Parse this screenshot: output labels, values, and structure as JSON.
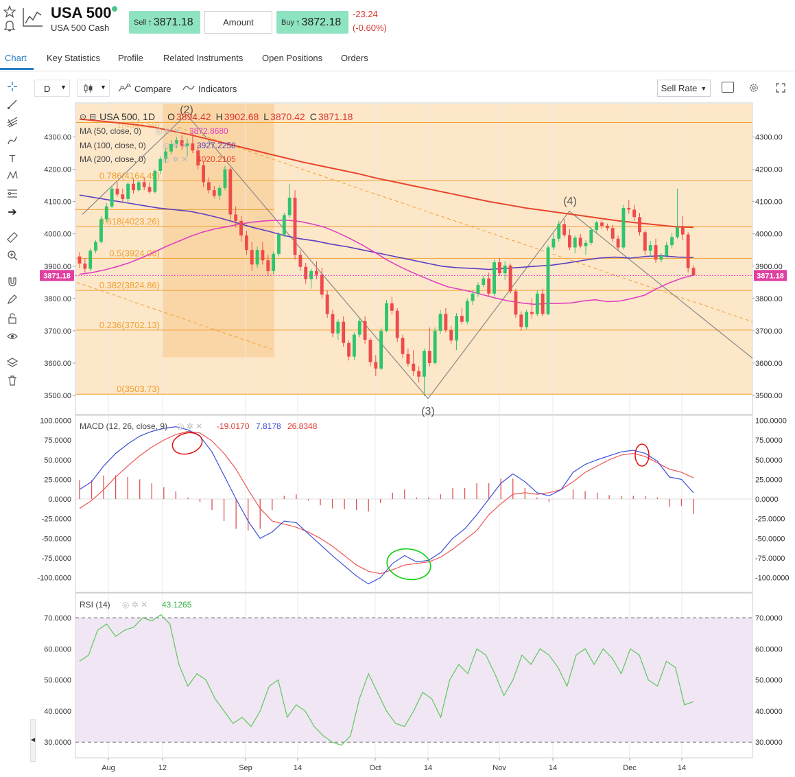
{
  "header": {
    "title": "USA 500",
    "subtitle": "USA 500 Cash",
    "sell_label": "Sell",
    "sell_price": "3871.18",
    "amount_label": "Amount",
    "buy_label": "Buy",
    "buy_price": "3872.18",
    "change": "-23.24",
    "change_pct": "(-0.60%)",
    "up_arrow": "↑",
    "colors": {
      "rate_bg": "#8ee3c0",
      "negative": "#d9382f",
      "online": "#4cc58a"
    }
  },
  "tabs": [
    {
      "label": "Chart",
      "active": true
    },
    {
      "label": "Key Statistics"
    },
    {
      "label": "Profile"
    },
    {
      "label": "Related Instruments"
    },
    {
      "label": "Open Positions"
    },
    {
      "label": "Orders"
    }
  ],
  "toolbar": {
    "interval": "D",
    "compare": "Compare",
    "indicators": "Indicators",
    "price_type": "Sell Rate"
  },
  "main_panel": {
    "legend": {
      "symbol": "USA 500, 1D",
      "o_label": "O",
      "o_value": "3894.42",
      "h_label": "H",
      "h_value": "3902.68",
      "l_label": "L",
      "l_value": "3870.42",
      "c_label": "C",
      "c_value": "3871.18"
    },
    "ma_rows": [
      {
        "label": "MA (50, close, 0)",
        "value": "3872.8680",
        "color": "#e040c0"
      },
      {
        "label": "MA (100, close, 0)",
        "value": "3927.2258",
        "color": "#5b3fbf"
      },
      {
        "label": "MA (200, close, 0)",
        "value": "4020.2105",
        "color": "#e5462c"
      }
    ],
    "fib_levels": [
      {
        "label": "0.786(4164.49)",
        "price": 4164.49
      },
      {
        "label": "0.618(4023.26)",
        "price": 4023.26
      },
      {
        "label": "0.5(3924.06)",
        "price": 3924.06
      },
      {
        "label": "0.382(3824.86)",
        "price": 3824.86
      },
      {
        "label": "0.236(3702.13)",
        "price": 3702.13
      },
      {
        "label": "0(3503.73)",
        "price": 3503.73
      }
    ],
    "fib_top_label": "1(4344.59)",
    "wave_labels": [
      "(2)",
      "(3)",
      "(4)"
    ],
    "price_ticks": [
      "4300.00",
      "4200.00",
      "4100.00",
      "4000.00",
      "3900.00",
      "3800.00",
      "3700.00",
      "3600.00",
      "3500.00"
    ],
    "last_price": "3871.18"
  },
  "macd_panel": {
    "label": "MACD (12, 26, close, 9)",
    "hist_value": "-19.0170",
    "macd_value": "7.8178",
    "signal_value": "26.8348",
    "ticks": [
      "100.0000",
      "75.0000",
      "50.0000",
      "25.0000",
      "0.0000",
      "-25.0000",
      "-50.0000",
      "-75.0000",
      "-100.0000"
    ]
  },
  "rsi_panel": {
    "label": "RSI (14)",
    "value": "43.1265",
    "ticks": [
      "70.0000",
      "60.0000",
      "50.0000",
      "40.0000",
      "30.0000"
    ]
  },
  "x_axis_ticks": [
    "Aug",
    "12",
    "Sep",
    "14",
    "Oct",
    "14",
    "Nov",
    "14",
    "Dec",
    "14"
  ],
  "chart_data": {
    "type": "candlestick",
    "x_ticks": [
      "Aug",
      "12",
      "Sep",
      "14",
      "Oct",
      "14",
      "Nov",
      "14",
      "Dec",
      "14"
    ],
    "y_ticks": [
      4300,
      4200,
      4100,
      4000,
      3900,
      3800,
      3700,
      3600,
      3500
    ],
    "ylim": [
      3480,
      4380
    ],
    "last": {
      "open": 3894.42,
      "high": 3902.68,
      "low": 3870.42,
      "close": 3871.18
    },
    "candles": [
      [
        3930,
        3943,
        3895,
        3908
      ],
      [
        3908,
        3925,
        3880,
        3892
      ],
      [
        3892,
        3955,
        3885,
        3948
      ],
      [
        3948,
        3980,
        3940,
        3975
      ],
      [
        3975,
        4055,
        3970,
        4045
      ],
      [
        4045,
        4095,
        4035,
        4085
      ],
      [
        4085,
        4150,
        4080,
        4140
      ],
      [
        4140,
        4160,
        4115,
        4122
      ],
      [
        4122,
        4140,
        4100,
        4108
      ],
      [
        4108,
        4160,
        4100,
        4155
      ],
      [
        4155,
        4170,
        4125,
        4135
      ],
      [
        4135,
        4165,
        4130,
        4160
      ],
      [
        4160,
        4175,
        4135,
        4145
      ],
      [
        4145,
        4160,
        4125,
        4130
      ],
      [
        4130,
        4200,
        4125,
        4195
      ],
      [
        4195,
        4240,
        4185,
        4232
      ],
      [
        4232,
        4265,
        4220,
        4255
      ],
      [
        4255,
        4290,
        4245,
        4278
      ],
      [
        4278,
        4300,
        4265,
        4290
      ],
      [
        4290,
        4305,
        4260,
        4272
      ],
      [
        4272,
        4295,
        4240,
        4280
      ],
      [
        4280,
        4310,
        4250,
        4258
      ],
      [
        4258,
        4275,
        4200,
        4212
      ],
      [
        4212,
        4225,
        4145,
        4160
      ],
      [
        4160,
        4175,
        4125,
        4135
      ],
      [
        4135,
        4148,
        4110,
        4118
      ],
      [
        4118,
        4150,
        4105,
        4142
      ],
      [
        4142,
        4210,
        4135,
        4200
      ],
      [
        4200,
        4205,
        4045,
        4060
      ],
      [
        4060,
        4085,
        4020,
        4040
      ],
      [
        4040,
        4055,
        3975,
        3995
      ],
      [
        3995,
        4010,
        3935,
        3950
      ],
      [
        3950,
        3975,
        3885,
        3905
      ],
      [
        3905,
        3960,
        3895,
        3950
      ],
      [
        3950,
        3975,
        3905,
        3918
      ],
      [
        3918,
        3935,
        3870,
        3885
      ],
      [
        3885,
        3945,
        3875,
        3938
      ],
      [
        3938,
        4005,
        3930,
        3998
      ],
      [
        3998,
        4065,
        3990,
        4058
      ],
      [
        4058,
        4155,
        4050,
        4112
      ],
      [
        4112,
        4135,
        3920,
        3935
      ],
      [
        3935,
        3950,
        3885,
        3898
      ],
      [
        3898,
        3910,
        3845,
        3860
      ],
      [
        3860,
        3892,
        3830,
        3885
      ],
      [
        3885,
        3915,
        3860,
        3874
      ],
      [
        3874,
        3895,
        3800,
        3812
      ],
      [
        3812,
        3825,
        3740,
        3752
      ],
      [
        3752,
        3765,
        3680,
        3692
      ],
      [
        3692,
        3735,
        3672,
        3728
      ],
      [
        3728,
        3745,
        3650,
        3662
      ],
      [
        3662,
        3670,
        3608,
        3620
      ],
      [
        3620,
        3695,
        3610,
        3688
      ],
      [
        3688,
        3740,
        3680,
        3730
      ],
      [
        3730,
        3745,
        3660,
        3672
      ],
      [
        3672,
        3678,
        3590,
        3603
      ],
      [
        3603,
        3625,
        3560,
        3583
      ],
      [
        3583,
        3710,
        3578,
        3700
      ],
      [
        3700,
        3795,
        3695,
        3785
      ],
      [
        3785,
        3805,
        3750,
        3762
      ],
      [
        3762,
        3770,
        3665,
        3678
      ],
      [
        3678,
        3688,
        3615,
        3628
      ],
      [
        3628,
        3645,
        3590,
        3598
      ],
      [
        3598,
        3640,
        3560,
        3575
      ],
      [
        3575,
        3590,
        3540,
        3558
      ],
      [
        3558,
        3645,
        3498,
        3638
      ],
      [
        3638,
        3710,
        3590,
        3600
      ],
      [
        3600,
        3710,
        3595,
        3700
      ],
      [
        3700,
        3765,
        3690,
        3752
      ],
      [
        3752,
        3770,
        3695,
        3702
      ],
      [
        3702,
        3715,
        3660,
        3670
      ],
      [
        3670,
        3755,
        3640,
        3746
      ],
      [
        3746,
        3770,
        3720,
        3728
      ],
      [
        3728,
        3800,
        3720,
        3792
      ],
      [
        3792,
        3825,
        3780,
        3815
      ],
      [
        3815,
        3850,
        3805,
        3842
      ],
      [
        3842,
        3870,
        3835,
        3862
      ],
      [
        3862,
        3880,
        3808,
        3815
      ],
      [
        3815,
        3920,
        3808,
        3912
      ],
      [
        3912,
        3925,
        3870,
        3878
      ],
      [
        3878,
        3915,
        3858,
        3902
      ],
      [
        3902,
        3908,
        3815,
        3822
      ],
      [
        3822,
        3830,
        3740,
        3750
      ],
      [
        3750,
        3760,
        3700,
        3712
      ],
      [
        3712,
        3765,
        3705,
        3758
      ],
      [
        3758,
        3800,
        3738,
        3752
      ],
      [
        3752,
        3825,
        3745,
        3815
      ],
      [
        3815,
        3830,
        3745,
        3752
      ],
      [
        3752,
        3965,
        3748,
        3958
      ],
      [
        3958,
        4000,
        3950,
        3985
      ],
      [
        3985,
        4040,
        3975,
        4030
      ],
      [
        4030,
        4045,
        3990,
        3996
      ],
      [
        3996,
        4015,
        3950,
        3958
      ],
      [
        3958,
        3995,
        3940,
        3988
      ],
      [
        3988,
        4000,
        3955,
        3962
      ],
      [
        3962,
        3980,
        3935,
        3972
      ],
      [
        3972,
        4020,
        3965,
        4012
      ],
      [
        4012,
        4040,
        4000,
        4035
      ],
      [
        4035,
        4042,
        4015,
        4025
      ],
      [
        4025,
        4032,
        4010,
        4018
      ],
      [
        4018,
        4028,
        3975,
        3985
      ],
      [
        3985,
        3995,
        3948,
        3958
      ],
      [
        3958,
        4090,
        3952,
        4080
      ],
      [
        4080,
        4105,
        4062,
        4075
      ],
      [
        4075,
        4090,
        4040,
        4052
      ],
      [
        4052,
        4065,
        3995,
        4005
      ],
      [
        4005,
        4012,
        3935,
        3948
      ],
      [
        3948,
        3978,
        3930,
        3965
      ],
      [
        3965,
        3985,
        3910,
        3920
      ],
      [
        3920,
        3940,
        3912,
        3932
      ],
      [
        3932,
        3975,
        3925,
        3965
      ],
      [
        3965,
        4002,
        3955,
        3990
      ],
      [
        3990,
        4140,
        3985,
        4020
      ],
      [
        4020,
        4055,
        3980,
        3998
      ],
      [
        3998,
        4005,
        3880,
        3894
      ],
      [
        3894.42,
        3902.68,
        3870.42,
        3871.18
      ]
    ],
    "ma50": [
      3875,
      3880,
      3888,
      3898,
      3910,
      3925,
      3942,
      3960,
      3976,
      3992,
      4005,
      4015,
      4022,
      4030,
      4036,
      4040,
      4042,
      4042,
      4038,
      4030,
      4020,
      4004,
      3986,
      3966,
      3944,
      3920,
      3900,
      3882,
      3866,
      3850,
      3836,
      3828,
      3820,
      3810,
      3800,
      3792,
      3786,
      3782,
      3784,
      3785,
      3786,
      3792,
      3796,
      3790,
      3792,
      3800,
      3810,
      3830,
      3848,
      3862,
      3872
    ],
    "ma100": [
      4120,
      4112,
      4104,
      4096,
      4088,
      4080,
      4075,
      4070,
      4060,
      4048,
      4034,
      4020,
      4008,
      3995,
      3985,
      3978,
      3968,
      3960,
      3950,
      3940,
      3930,
      3920,
      3910,
      3900,
      3895,
      3893,
      3890,
      3893,
      3896,
      3900,
      3903,
      3910,
      3918,
      3925,
      3928,
      3925,
      3930,
      3932,
      3928,
      3927
    ],
    "ma200": [
      4355,
      4350,
      4344,
      4338,
      4330,
      4318,
      4306,
      4292,
      4278,
      4264,
      4250,
      4236,
      4222,
      4210,
      4198,
      4186,
      4172,
      4160,
      4148,
      4136,
      4124,
      4112,
      4100,
      4090,
      4080,
      4072,
      4064,
      4056,
      4048,
      4040,
      4034,
      4028,
      4022,
      4020
    ],
    "macd": [
      12,
      22,
      42,
      58,
      70,
      80,
      86,
      90,
      92,
      88,
      80,
      60,
      30,
      0,
      -28,
      -50,
      -42,
      -28,
      -30,
      -44,
      -58,
      -72,
      -85,
      -98,
      -108,
      -100,
      -82,
      -72,
      -80,
      -78,
      -68,
      -50,
      -38,
      -20,
      0,
      20,
      32,
      22,
      8,
      4,
      12,
      34,
      44,
      50,
      55,
      60,
      62,
      58,
      48,
      28,
      25,
      8
    ],
    "signal": [
      -12,
      -2,
      12,
      28,
      42,
      55,
      66,
      75,
      82,
      86,
      84,
      74,
      58,
      38,
      12,
      -12,
      -28,
      -32,
      -36,
      -42,
      -50,
      -60,
      -72,
      -84,
      -92,
      -95,
      -90,
      -84,
      -82,
      -80,
      -74,
      -64,
      -52,
      -40,
      -20,
      -6,
      6,
      8,
      6,
      8,
      12,
      22,
      34,
      42,
      50,
      56,
      58,
      54,
      46,
      38,
      34,
      27
    ],
    "rsi": [
      56,
      58,
      66,
      68,
      64,
      66,
      67,
      70,
      69,
      71,
      68,
      55,
      48,
      52,
      50,
      44,
      40,
      36,
      38,
      35,
      40,
      48,
      50,
      38,
      42,
      40,
      35,
      32,
      30,
      29,
      32,
      44,
      52,
      46,
      40,
      36,
      35,
      40,
      46,
      44,
      38,
      50,
      55,
      52,
      60,
      58,
      52,
      45,
      50,
      58,
      55,
      60,
      58,
      54,
      48,
      58,
      60,
      55,
      60,
      57,
      52,
      60,
      58,
      50,
      48,
      56,
      54,
      42,
      43
    ],
    "annotations": [
      "(2)",
      "(3)",
      "(4)",
      "0.786(4164.49)",
      "0.618(4023.26)",
      "0.5(3924.06)",
      "0.382(3824.86)",
      "0.236(3702.13)",
      "0(3503.73)"
    ]
  }
}
